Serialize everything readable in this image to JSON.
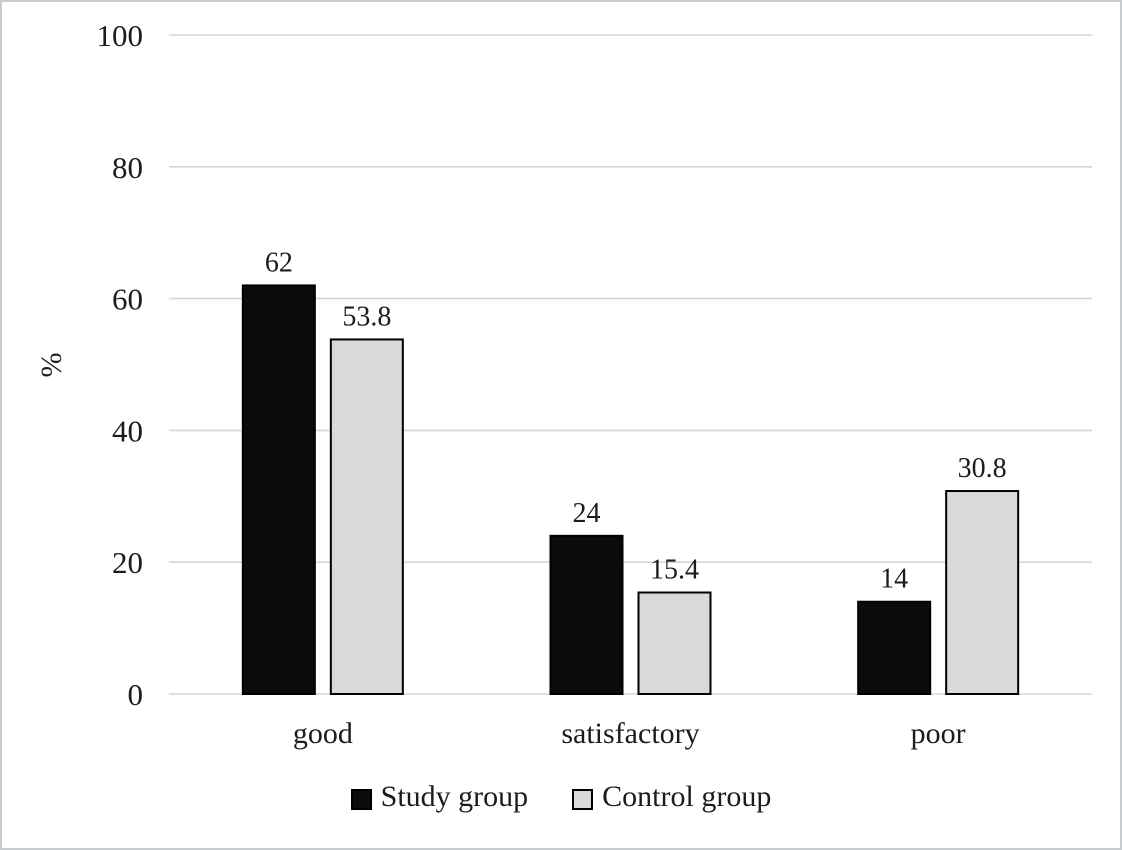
{
  "chart_data": {
    "type": "bar",
    "categories": [
      "good",
      "satisfactory",
      "poor"
    ],
    "series": [
      {
        "name": "Study group",
        "values": [
          62,
          24,
          14
        ],
        "fill": "#0b0b0b",
        "stroke": "#000000"
      },
      {
        "name": "Control group",
        "values": [
          53.8,
          15.4,
          30.8
        ],
        "fill": "#d9d9d9",
        "stroke": "#000000"
      }
    ],
    "data_labels": {
      "Study group": [
        "62",
        "24",
        "14"
      ],
      "Control group": [
        "53.8",
        "15.4",
        "30.8"
      ]
    },
    "title": "",
    "xlabel": "",
    "ylabel": "%",
    "y_ticks": [
      "0",
      "20",
      "40",
      "60",
      "80",
      "100"
    ],
    "ylim": [
      0,
      100
    ],
    "grid": true,
    "legend_position": "bottom",
    "colors": {
      "gridline": "#d6d6d6",
      "text": "#1c1c1c",
      "background": "#ffffff",
      "frame_border": "#c7cbce"
    }
  }
}
